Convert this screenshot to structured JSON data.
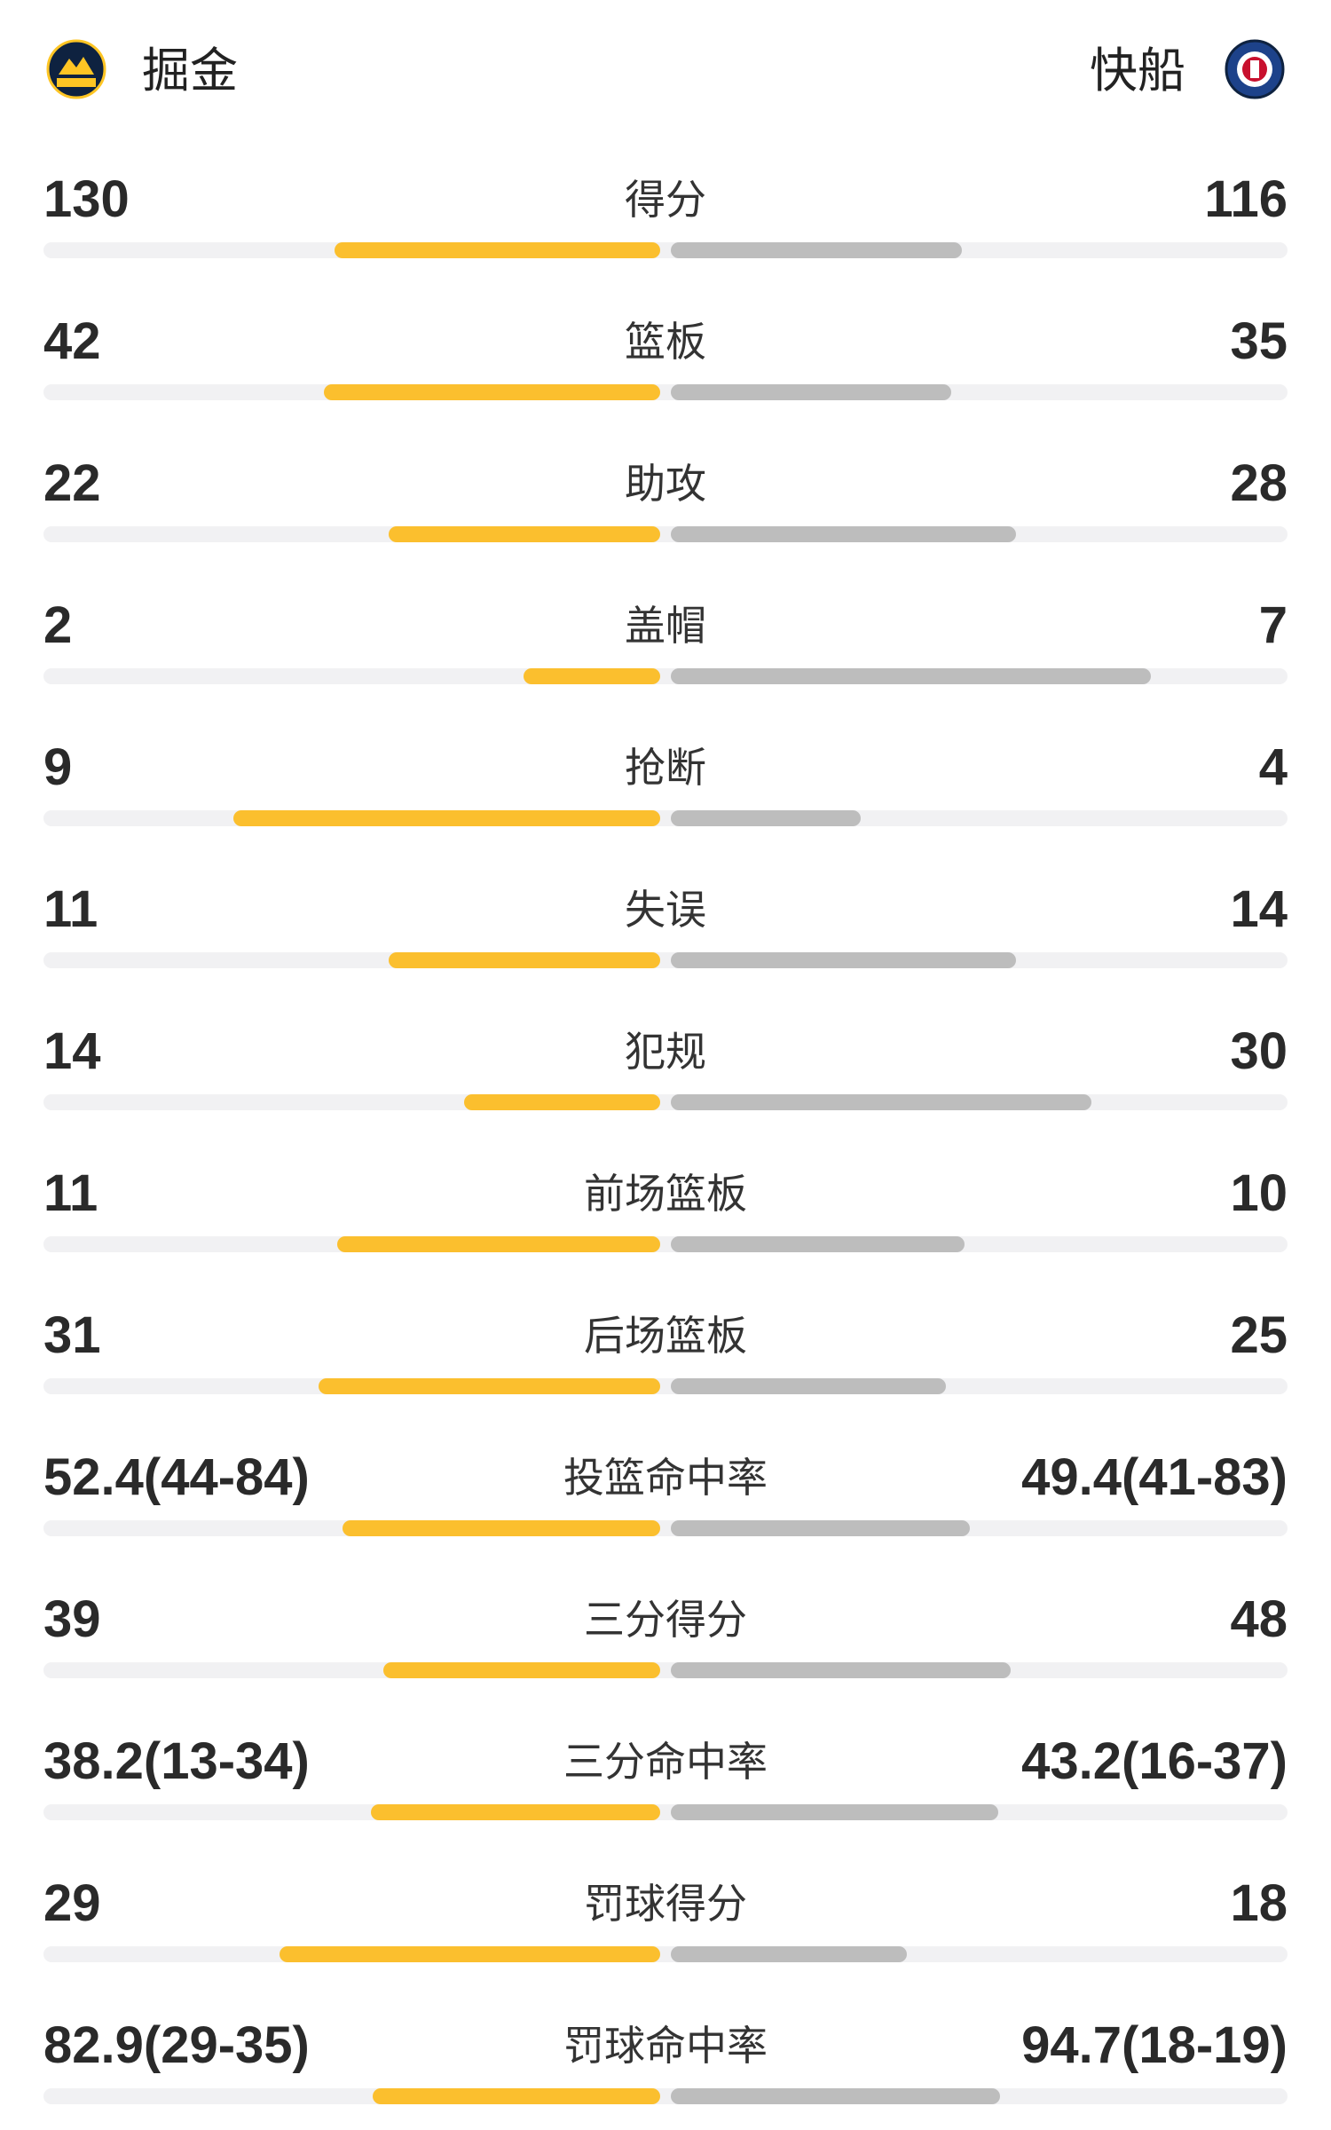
{
  "header": {
    "home_team": "掘金",
    "away_team": "快船"
  },
  "stats": [
    {
      "name": "得分",
      "home": 130,
      "away": 116
    },
    {
      "name": "篮板",
      "home": 42,
      "away": 35
    },
    {
      "name": "助攻",
      "home": 22,
      "away": 28
    },
    {
      "name": "盖帽",
      "home": 2,
      "away": 7
    },
    {
      "name": "抢断",
      "home": 9,
      "away": 4
    },
    {
      "name": "失误",
      "home": 11,
      "away": 14
    },
    {
      "name": "犯规",
      "home": 14,
      "away": 30
    },
    {
      "name": "前场篮板",
      "home": 11,
      "away": 10
    },
    {
      "name": "后场篮板",
      "home": 31,
      "away": 25
    },
    {
      "name": "投篮命中率",
      "home": 52.4,
      "home_label": "52.4(44-84)",
      "away": 49.4,
      "away_label": "49.4(41-83)"
    },
    {
      "name": "三分得分",
      "home": 39,
      "away": 48
    },
    {
      "name": "三分命中率",
      "home": 38.2,
      "home_label": "38.2(13-34)",
      "away": 43.2,
      "away_label": "43.2(16-37)"
    },
    {
      "name": "罚球得分",
      "home": 29,
      "away": 18
    },
    {
      "name": "罚球命中率",
      "home": 82.9,
      "home_label": "82.9(29-35)",
      "away": 94.7,
      "away_label": "94.7(18-19)"
    }
  ]
}
